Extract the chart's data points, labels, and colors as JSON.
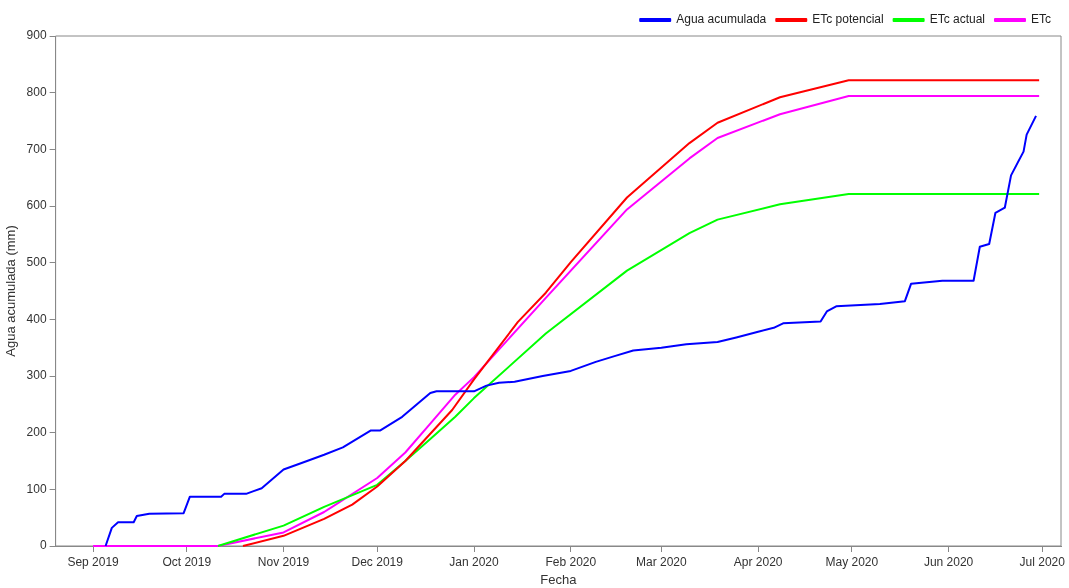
{
  "chart_data": {
    "type": "line",
    "xlabel": "Fecha",
    "ylabel": "Agua acumulada (mm)",
    "xlim": [
      "2019-08-20",
      "2020-07-07"
    ],
    "xticks": [
      {
        "value": "2019-09-01",
        "label": "Sep 2019"
      },
      {
        "value": "2019-10-01",
        "label": "Oct 2019"
      },
      {
        "value": "2019-11-01",
        "label": "Nov 2019"
      },
      {
        "value": "2019-12-01",
        "label": "Dec 2019"
      },
      {
        "value": "2020-01-01",
        "label": "Jan 2020"
      },
      {
        "value": "2020-02-01",
        "label": "Feb 2020"
      },
      {
        "value": "2020-03-01",
        "label": "Mar 2020"
      },
      {
        "value": "2020-04-01",
        "label": "Apr 2020"
      },
      {
        "value": "2020-05-01",
        "label": "May 2020"
      },
      {
        "value": "2020-06-01",
        "label": "Jun 2020"
      },
      {
        "value": "2020-07-01",
        "label": "Jul 2020"
      }
    ],
    "ylim": [
      0,
      900
    ],
    "yticks": [
      0,
      100,
      200,
      300,
      400,
      500,
      600,
      700,
      800,
      900
    ],
    "grid": false,
    "legend": "top right",
    "marker": "none",
    "line_style": "solid",
    "series": [
      {
        "name": "Agua acumulada",
        "color": "#0000ff",
        "x": [
          "2019-09-05",
          "2019-09-07",
          "2019-09-09",
          "2019-09-14",
          "2019-09-15",
          "2019-09-19",
          "2019-09-30",
          "2019-10-02",
          "2019-10-12",
          "2019-10-13",
          "2019-10-20",
          "2019-10-25",
          "2019-11-01",
          "2019-11-07",
          "2019-11-14",
          "2019-11-20",
          "2019-11-29",
          "2019-12-02",
          "2019-12-09",
          "2019-12-18",
          "2019-12-20",
          "2020-01-01",
          "2020-01-05",
          "2020-01-09",
          "2020-01-14",
          "2020-01-23",
          "2020-02-01",
          "2020-02-09",
          "2020-02-15",
          "2020-02-21",
          "2020-03-01",
          "2020-03-09",
          "2020-03-19",
          "2020-03-25",
          "2020-04-01",
          "2020-04-06",
          "2020-04-09",
          "2020-04-21",
          "2020-04-23",
          "2020-04-26",
          "2020-05-10",
          "2020-05-18",
          "2020-05-20",
          "2020-05-30",
          "2020-06-09",
          "2020-06-11",
          "2020-06-14",
          "2020-06-16",
          "2020-06-19",
          "2020-06-21",
          "2020-06-25",
          "2020-06-26",
          "2020-06-29"
        ],
        "values": [
          0,
          32,
          42,
          42,
          53,
          57,
          58,
          87,
          87,
          92,
          92,
          102,
          135,
          147,
          161,
          174,
          204,
          204,
          228,
          270,
          273,
          273,
          283,
          288,
          290,
          300,
          309,
          325,
          335,
          345,
          350,
          356,
          360,
          368,
          378,
          385,
          393,
          396,
          414,
          423,
          427,
          432,
          463,
          468,
          468,
          528,
          533,
          588,
          597,
          654,
          696,
          726,
          759
        ]
      },
      {
        "name": "ETc potencial",
        "color": "#ff0000",
        "x": [
          "2019-10-19",
          "2019-11-01",
          "2019-11-14",
          "2019-11-23",
          "2019-12-01",
          "2019-12-10",
          "2019-12-18",
          "2019-12-25",
          "2020-01-01",
          "2020-01-15",
          "2020-01-24",
          "2020-02-01",
          "2020-02-19",
          "2020-03-10",
          "2020-03-19",
          "2020-04-08",
          "2020-04-30",
          "2020-06-30"
        ],
        "values": [
          0,
          18,
          48,
          73,
          105,
          150,
          198,
          240,
          294,
          395,
          447,
          501,
          615,
          711,
          747,
          792,
          822,
          822
        ]
      },
      {
        "name": "ETc actual",
        "color": "#00ff00",
        "x": [
          "2019-10-11",
          "2019-11-01",
          "2019-11-14",
          "2019-12-01",
          "2019-12-10",
          "2019-12-18",
          "2019-12-26",
          "2020-01-01",
          "2020-01-24",
          "2020-02-19",
          "2020-03-10",
          "2020-03-19",
          "2020-04-08",
          "2020-04-30",
          "2020-06-30"
        ],
        "values": [
          0,
          36,
          69,
          108,
          150,
          189,
          228,
          261,
          375,
          486,
          552,
          576,
          603,
          621,
          621
        ]
      },
      {
        "name": "ETc",
        "color": "#ff00ff",
        "x": [
          "2019-09-01",
          "2019-10-11",
          "2019-11-01",
          "2019-11-14",
          "2019-12-01",
          "2019-12-10",
          "2019-12-18",
          "2019-12-26",
          "2020-01-01",
          "2020-01-24",
          "2020-02-19",
          "2020-03-10",
          "2020-03-19",
          "2020-04-08",
          "2020-04-30",
          "2020-06-30"
        ],
        "values": [
          0,
          0,
          24,
          60,
          120,
          165,
          216,
          267,
          298,
          438,
          594,
          684,
          720,
          762,
          794,
          794
        ]
      }
    ]
  }
}
